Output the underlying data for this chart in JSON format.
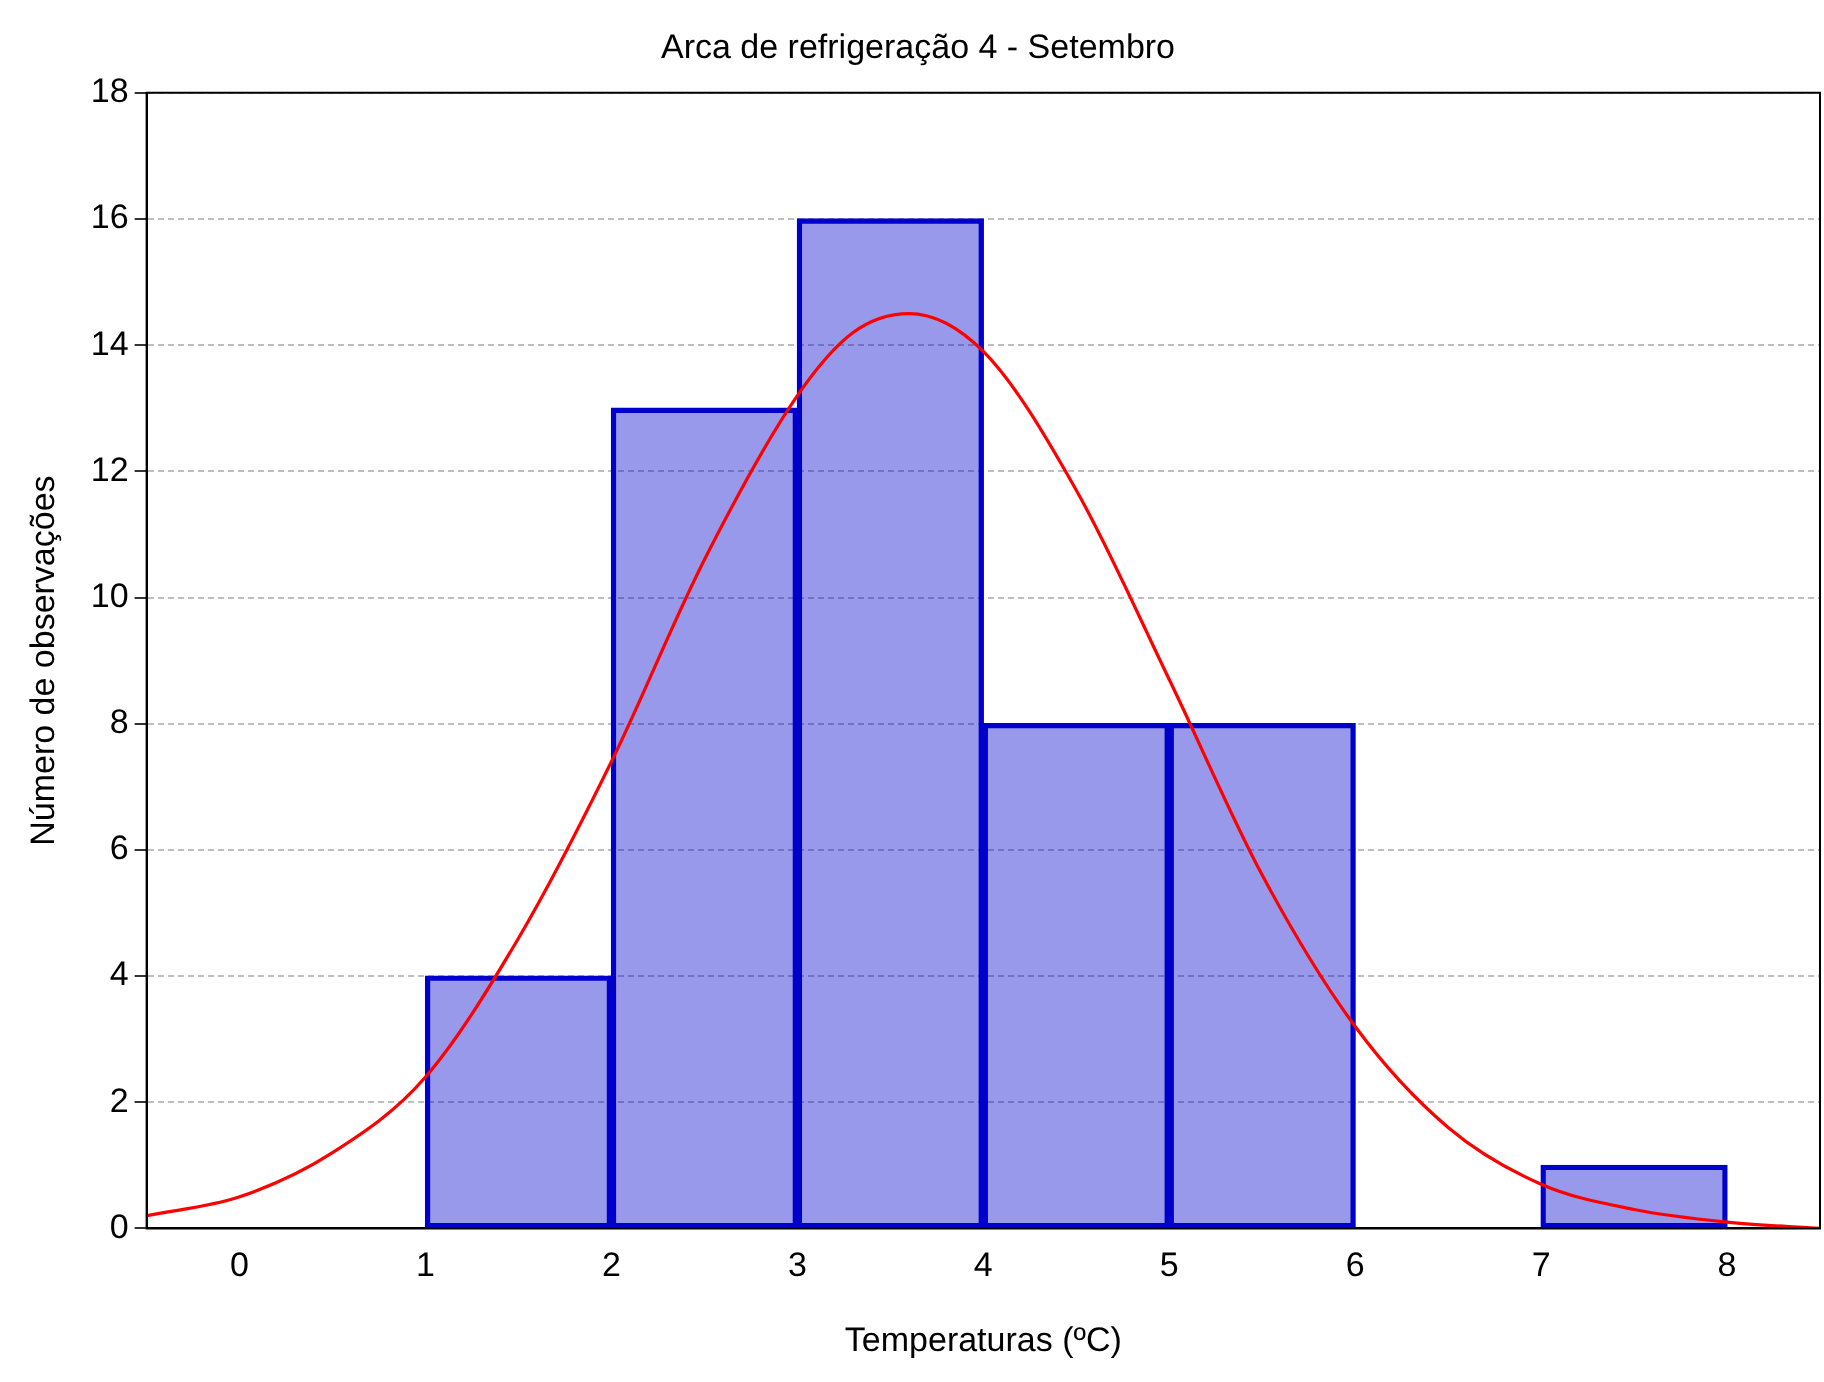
{
  "chart_data": {
    "type": "bar",
    "title": "Arca de refrigeração 4 - Setembro",
    "xlabel": "Temperaturas (ºC)",
    "ylabel": "Número de observações",
    "x": [
      1.5,
      2.5,
      3.5,
      4.5,
      5.5,
      6.5,
      7.5
    ],
    "values": [
      4,
      13,
      16,
      8,
      8,
      0,
      1
    ],
    "color": "#0000cc",
    "series": [
      {
        "type": "line",
        "color": "#ff0000",
        "x": [
          -0.5,
          0,
          0.5,
          1,
          1.5,
          2,
          2.5,
          3,
          3.3,
          3.6,
          4,
          4.5,
          5,
          5.5,
          6,
          6.5,
          7,
          7.5,
          8,
          8.5
        ],
        "values": [
          0.2,
          0.5,
          1.2,
          2.4,
          4.6,
          7.4,
          10.6,
          13.2,
          14.2,
          14.5,
          13.9,
          11.7,
          8.7,
          5.6,
          3.2,
          1.6,
          0.7,
          0.3,
          0.1,
          0.0
        ]
      }
    ],
    "xlim": [
      -0.5,
      8.5
    ],
    "xticks": [
      0,
      1,
      2,
      3,
      4,
      5,
      6,
      7,
      8
    ],
    "ylim": [
      0,
      18
    ],
    "yticks": [
      0,
      2,
      4,
      6,
      8,
      10,
      12,
      14,
      16,
      18
    ],
    "grid": "y",
    "legend": false,
    "marker": "none"
  }
}
